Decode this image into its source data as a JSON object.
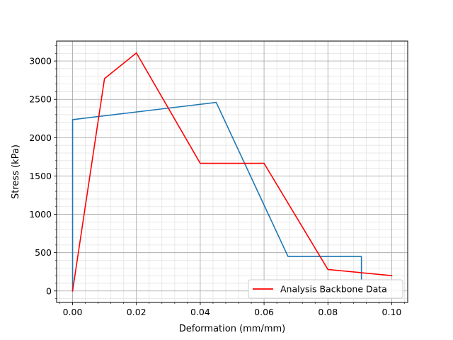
{
  "chart_data": {
    "type": "line",
    "title": "",
    "xlabel": "Deformation (mm/mm)",
    "ylabel": "Stress (kPa)",
    "xlim": [
      -0.005,
      0.105
    ],
    "ylim": [
      -150,
      3260
    ],
    "x_ticks": [
      0.0,
      0.02,
      0.04,
      0.06,
      0.08,
      0.1
    ],
    "x_tick_labels": [
      "0.00",
      "0.02",
      "0.04",
      "0.06",
      "0.08",
      "0.10"
    ],
    "y_ticks": [
      0,
      500,
      1000,
      1500,
      2000,
      2500,
      3000
    ],
    "y_tick_labels": [
      "0",
      "500",
      "1000",
      "1500",
      "2000",
      "2500",
      "3000"
    ],
    "grid": true,
    "legend_position": "lower-right",
    "series": [
      {
        "name": "",
        "color": "#1f77b4",
        "x": [
          0.0,
          0.0,
          0.045,
          0.0675,
          0.0905,
          0.0905
        ],
        "y": [
          0,
          2235,
          2460,
          450,
          450,
          150
        ]
      },
      {
        "name": "Analysis Backbone Data",
        "color": "#ff0000",
        "x": [
          0.0,
          0.01,
          0.02,
          0.04,
          0.06,
          0.08,
          0.1
        ],
        "y": [
          0,
          2770,
          3105,
          1665,
          1665,
          280,
          200
        ]
      }
    ]
  }
}
